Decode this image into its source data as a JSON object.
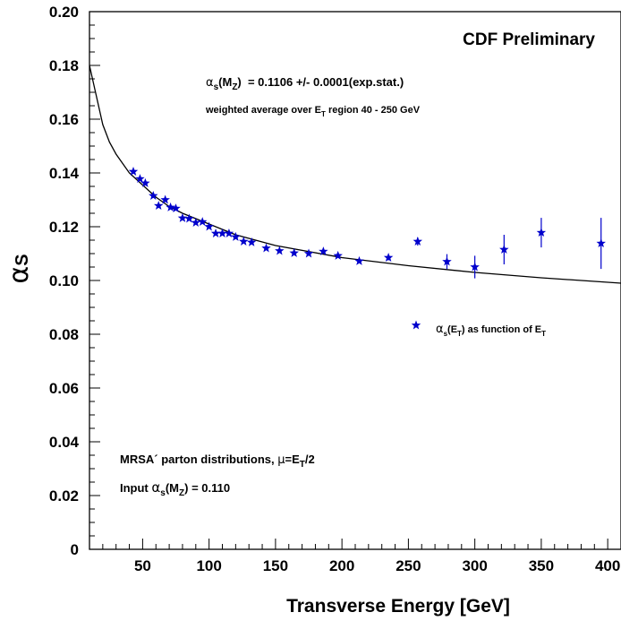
{
  "chart_data": {
    "type": "scatter",
    "title": "CDF Preliminary",
    "xlabel": "Transverse Energy [GeV]",
    "ylabel": "α",
    "ylabel_sub": "S",
    "xlim": [
      10,
      410
    ],
    "ylim": [
      0,
      0.2
    ],
    "grid": false,
    "x_tick_labels": [
      "50",
      "100",
      "150",
      "200",
      "250",
      "300",
      "350",
      "400"
    ],
    "y_tick_labels": [
      "0",
      "0.02",
      "0.04",
      "0.06",
      "0.08",
      "0.10",
      "0.12",
      "0.14",
      "0.16",
      "0.18",
      "0.20"
    ],
    "annotations": {
      "result": {
        "alpha": "α",
        "s": "s",
        "M": "(M",
        "Z": "Z",
        "rest": ")  = 0.1106 +/- 0.0001(exp.stat.)"
      },
      "average": {
        "pre": "weighted average over E",
        "T": "T",
        "post": " region 40 - 250 GeV"
      },
      "pdf": {
        "pre": "MRSA´ parton distributions, ",
        "mu": "μ",
        "eq": "=E",
        "T": "T",
        "post": "/2"
      },
      "input": {
        "pre": "Input ",
        "alpha": "α",
        "s": "s",
        "M": "(M",
        "Z": "Z",
        "post": ") = 0.110"
      }
    },
    "legend": {
      "placement": "middle-right",
      "entry": {
        "alpha": "α",
        "s": "s",
        "E": "(E",
        "T1": "T",
        "mid": ") as function of E",
        "T2": "T"
      }
    },
    "series": [
      {
        "kind": "points",
        "color": "#0000cc",
        "points": [
          {
            "x": 43,
            "y": 0.1405,
            "err": 0
          },
          {
            "x": 48,
            "y": 0.1378,
            "err": 0
          },
          {
            "x": 52,
            "y": 0.1362,
            "err": 0
          },
          {
            "x": 58,
            "y": 0.1315,
            "err": 0
          },
          {
            "x": 62,
            "y": 0.1278,
            "err": 0
          },
          {
            "x": 67,
            "y": 0.13,
            "err": 0
          },
          {
            "x": 71,
            "y": 0.1272,
            "err": 0
          },
          {
            "x": 75,
            "y": 0.1268,
            "err": 0
          },
          {
            "x": 80,
            "y": 0.1232,
            "err": 0
          },
          {
            "x": 85,
            "y": 0.123,
            "err": 0
          },
          {
            "x": 90,
            "y": 0.1215,
            "err": 0
          },
          {
            "x": 95,
            "y": 0.1218,
            "err": 0
          },
          {
            "x": 100,
            "y": 0.12,
            "err": 0
          },
          {
            "x": 105,
            "y": 0.1175,
            "err": 0
          },
          {
            "x": 110,
            "y": 0.1175,
            "err": 0
          },
          {
            "x": 115,
            "y": 0.1175,
            "err": 0
          },
          {
            "x": 120,
            "y": 0.1162,
            "err": 0
          },
          {
            "x": 126,
            "y": 0.1145,
            "err": 0
          },
          {
            "x": 132,
            "y": 0.1142,
            "err": 0
          },
          {
            "x": 143,
            "y": 0.112,
            "err": 0
          },
          {
            "x": 153,
            "y": 0.111,
            "err": 0
          },
          {
            "x": 164,
            "y": 0.1102,
            "err": 0
          },
          {
            "x": 175,
            "y": 0.11,
            "err": 0
          },
          {
            "x": 186,
            "y": 0.1108,
            "err": 0
          },
          {
            "x": 197,
            "y": 0.1092,
            "err": 0.0005
          },
          {
            "x": 213,
            "y": 0.1072,
            "err": 0.0007
          },
          {
            "x": 235,
            "y": 0.1085,
            "err": 0.001
          },
          {
            "x": 257,
            "y": 0.1145,
            "err": 0.0015
          },
          {
            "x": 279,
            "y": 0.107,
            "err": 0.0028
          },
          {
            "x": 300,
            "y": 0.105,
            "err": 0.0042
          },
          {
            "x": 322,
            "y": 0.1115,
            "err": 0.0055
          },
          {
            "x": 350,
            "y": 0.1178,
            "err": 0.0055
          },
          {
            "x": 395,
            "y": 0.1138,
            "err": 0.0095
          }
        ]
      },
      {
        "kind": "curve",
        "color": "#000000",
        "x": [
          10,
          15,
          20,
          25,
          30,
          40,
          50,
          60,
          70,
          80,
          100,
          120,
          150,
          200,
          250,
          300,
          350,
          410
        ],
        "y": [
          0.18,
          0.169,
          0.158,
          0.1515,
          0.147,
          0.14,
          0.1355,
          0.131,
          0.1275,
          0.125,
          0.121,
          0.117,
          0.113,
          0.1085,
          0.1055,
          0.103,
          0.101,
          0.099
        ]
      }
    ]
  }
}
